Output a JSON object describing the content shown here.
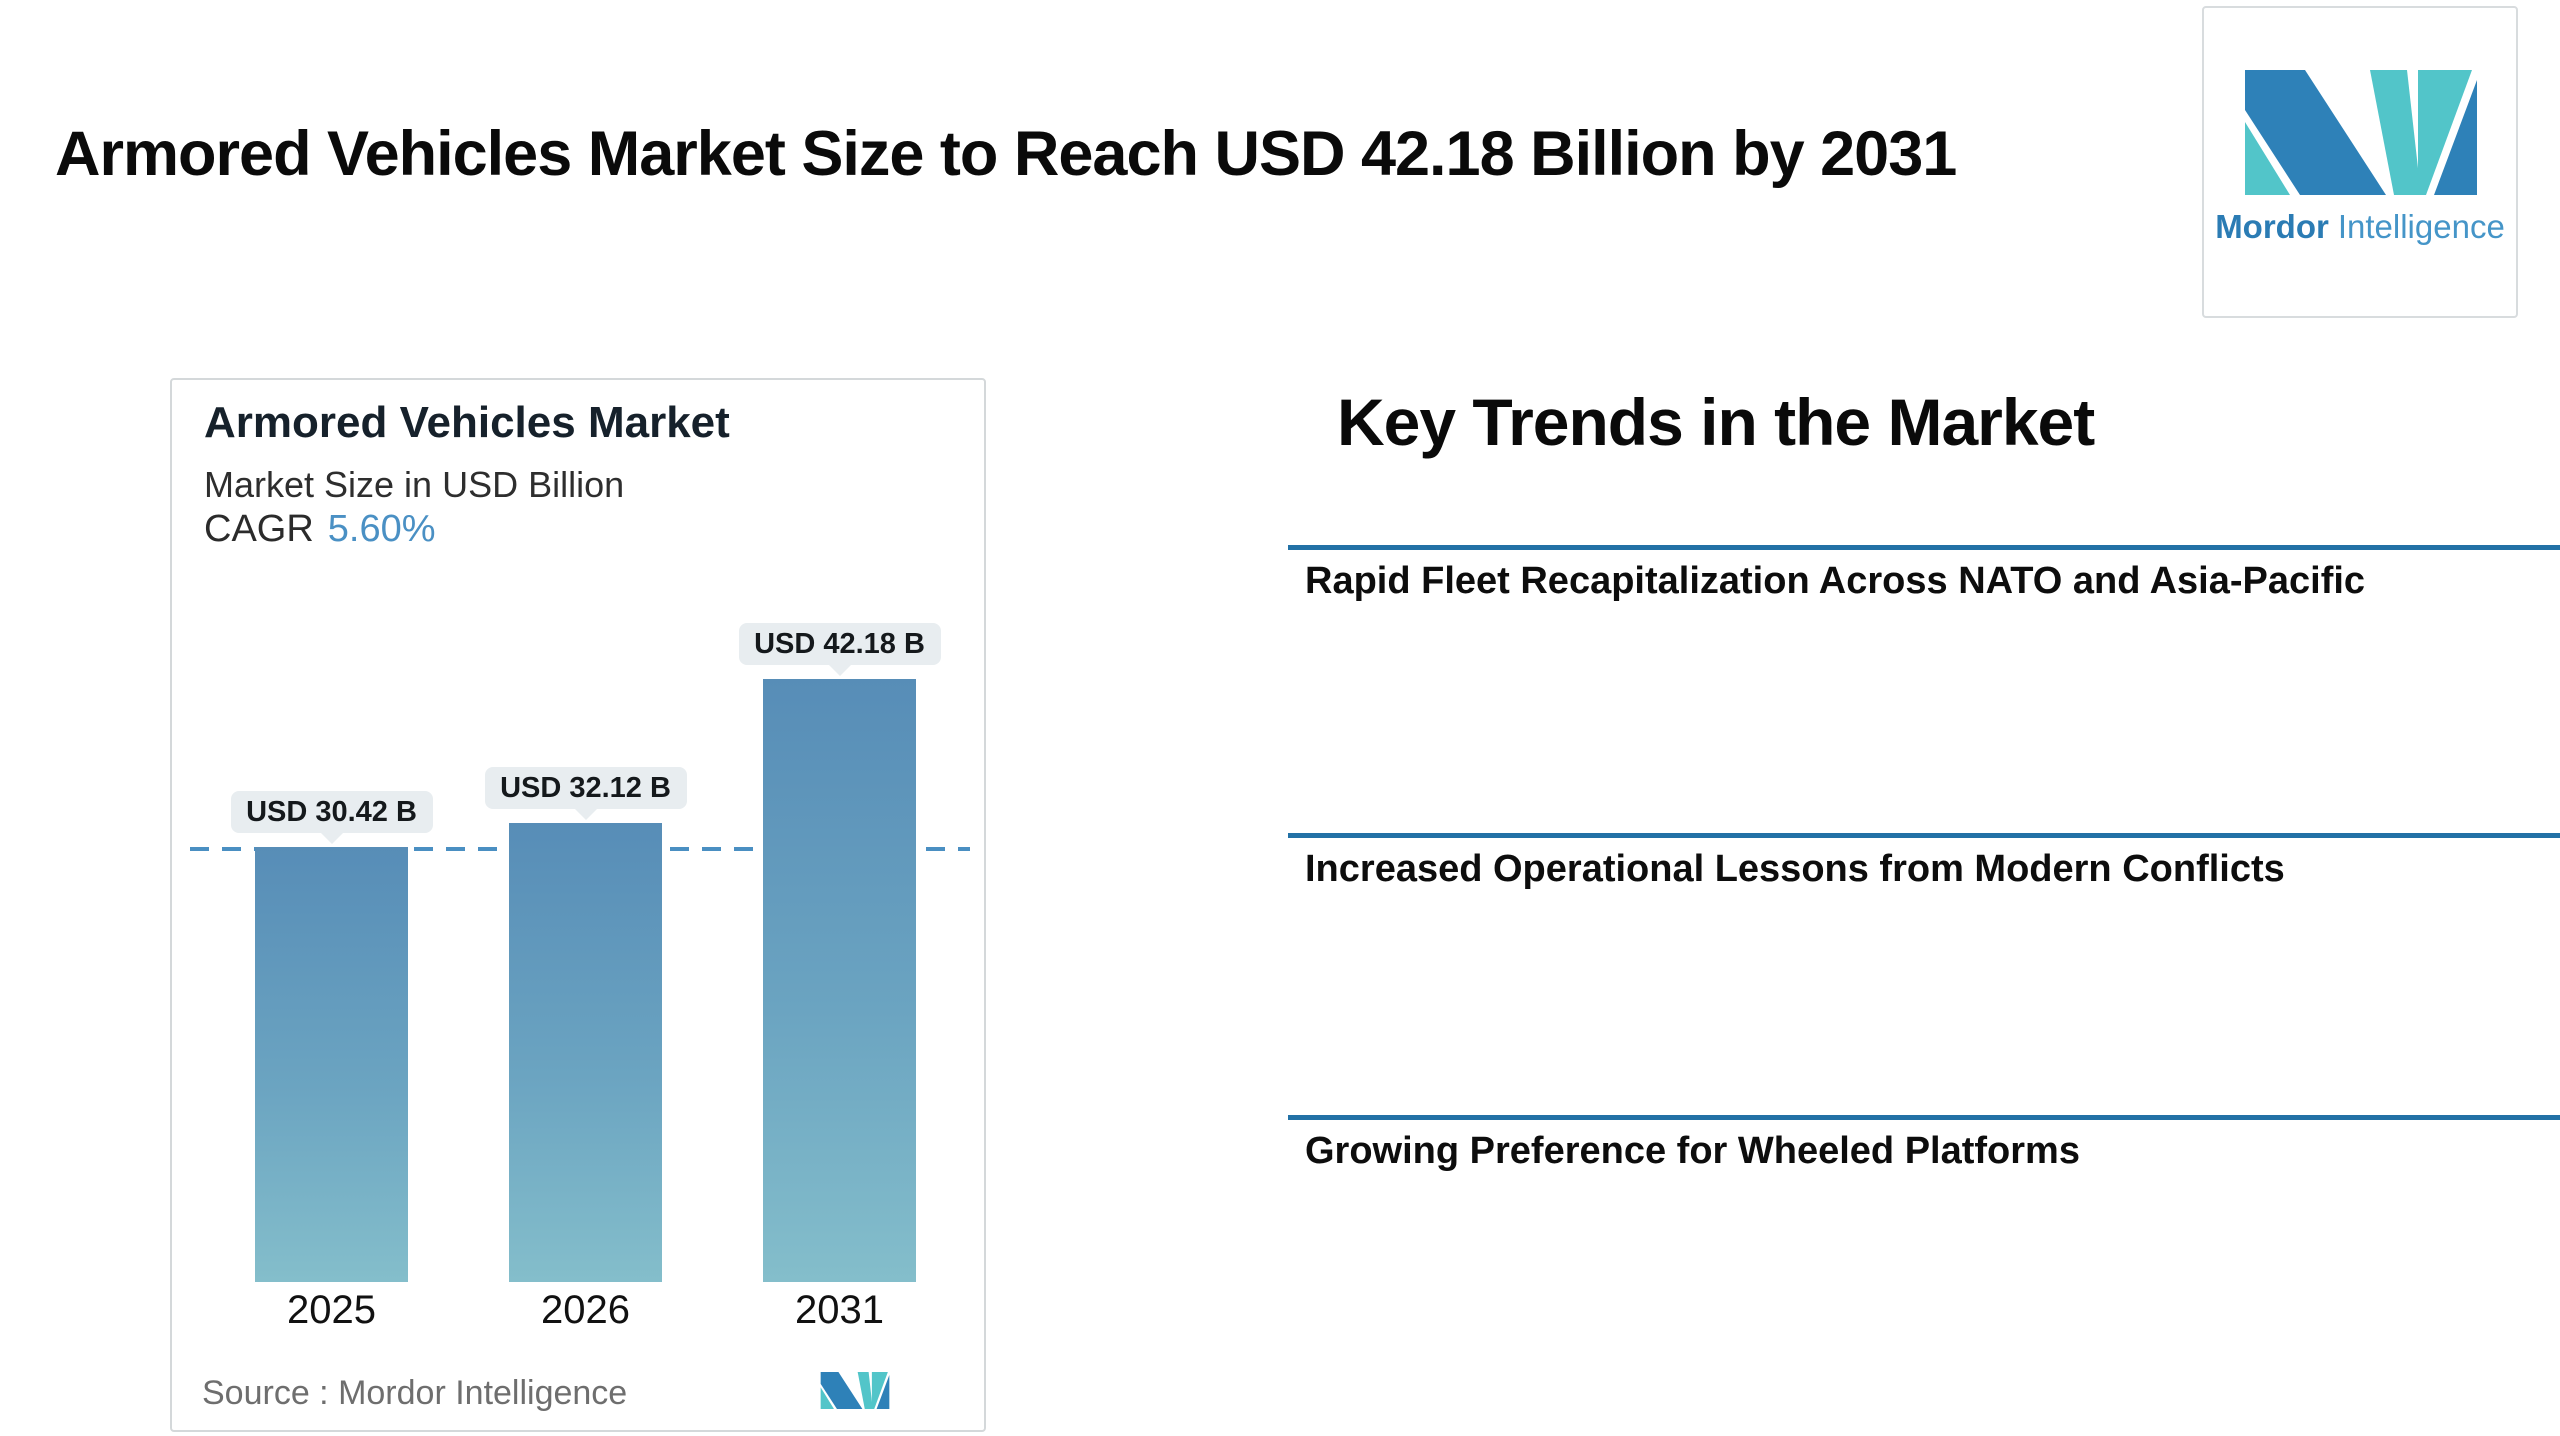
{
  "header": {
    "title": "Armored Vehicles Market Size to Reach USD 42.18 Billion by 2031"
  },
  "brand": {
    "name_bold": "Mordor",
    "name_light": "Intelligence",
    "logo_blue": "#2e81b8",
    "logo_teal": "#52c5c9"
  },
  "chart_card": {
    "title": "Armored Vehicles Market",
    "subtitle": "Market Size in USD Billion",
    "cagr_label": "CAGR",
    "cagr_value": "5.60%",
    "source_text": "Source :  Mordor Intelligence"
  },
  "chart_data": {
    "type": "bar",
    "categories": [
      "2025",
      "2026",
      "2031"
    ],
    "values": [
      30.42,
      32.12,
      42.18
    ],
    "bar_labels": [
      "USD 30.42 B",
      "USD 32.12 B",
      "USD 42.18 B"
    ],
    "title": "Armored Vehicles Market",
    "subtitle": "Market Size in USD Billion",
    "cagr": "5.60%",
    "ylim": [
      0,
      63
    ],
    "reference_line": 30.42,
    "reference_line_style": "dashed",
    "reference_line_color": "#4a8fc2",
    "bar_gradient_top": "#578db7",
    "bar_gradient_bottom": "#84becb",
    "label_box_color": "#e8edf0",
    "grid": false,
    "legend": false
  },
  "key_trends": {
    "heading": "Key Trends in the Market",
    "divider_color": "#2271a6",
    "items": [
      "Rapid Fleet Recapitalization Across NATO and Asia-Pacific",
      "Increased Operational Lessons from Modern Conflicts",
      "Growing Preference for Wheeled Platforms"
    ]
  }
}
